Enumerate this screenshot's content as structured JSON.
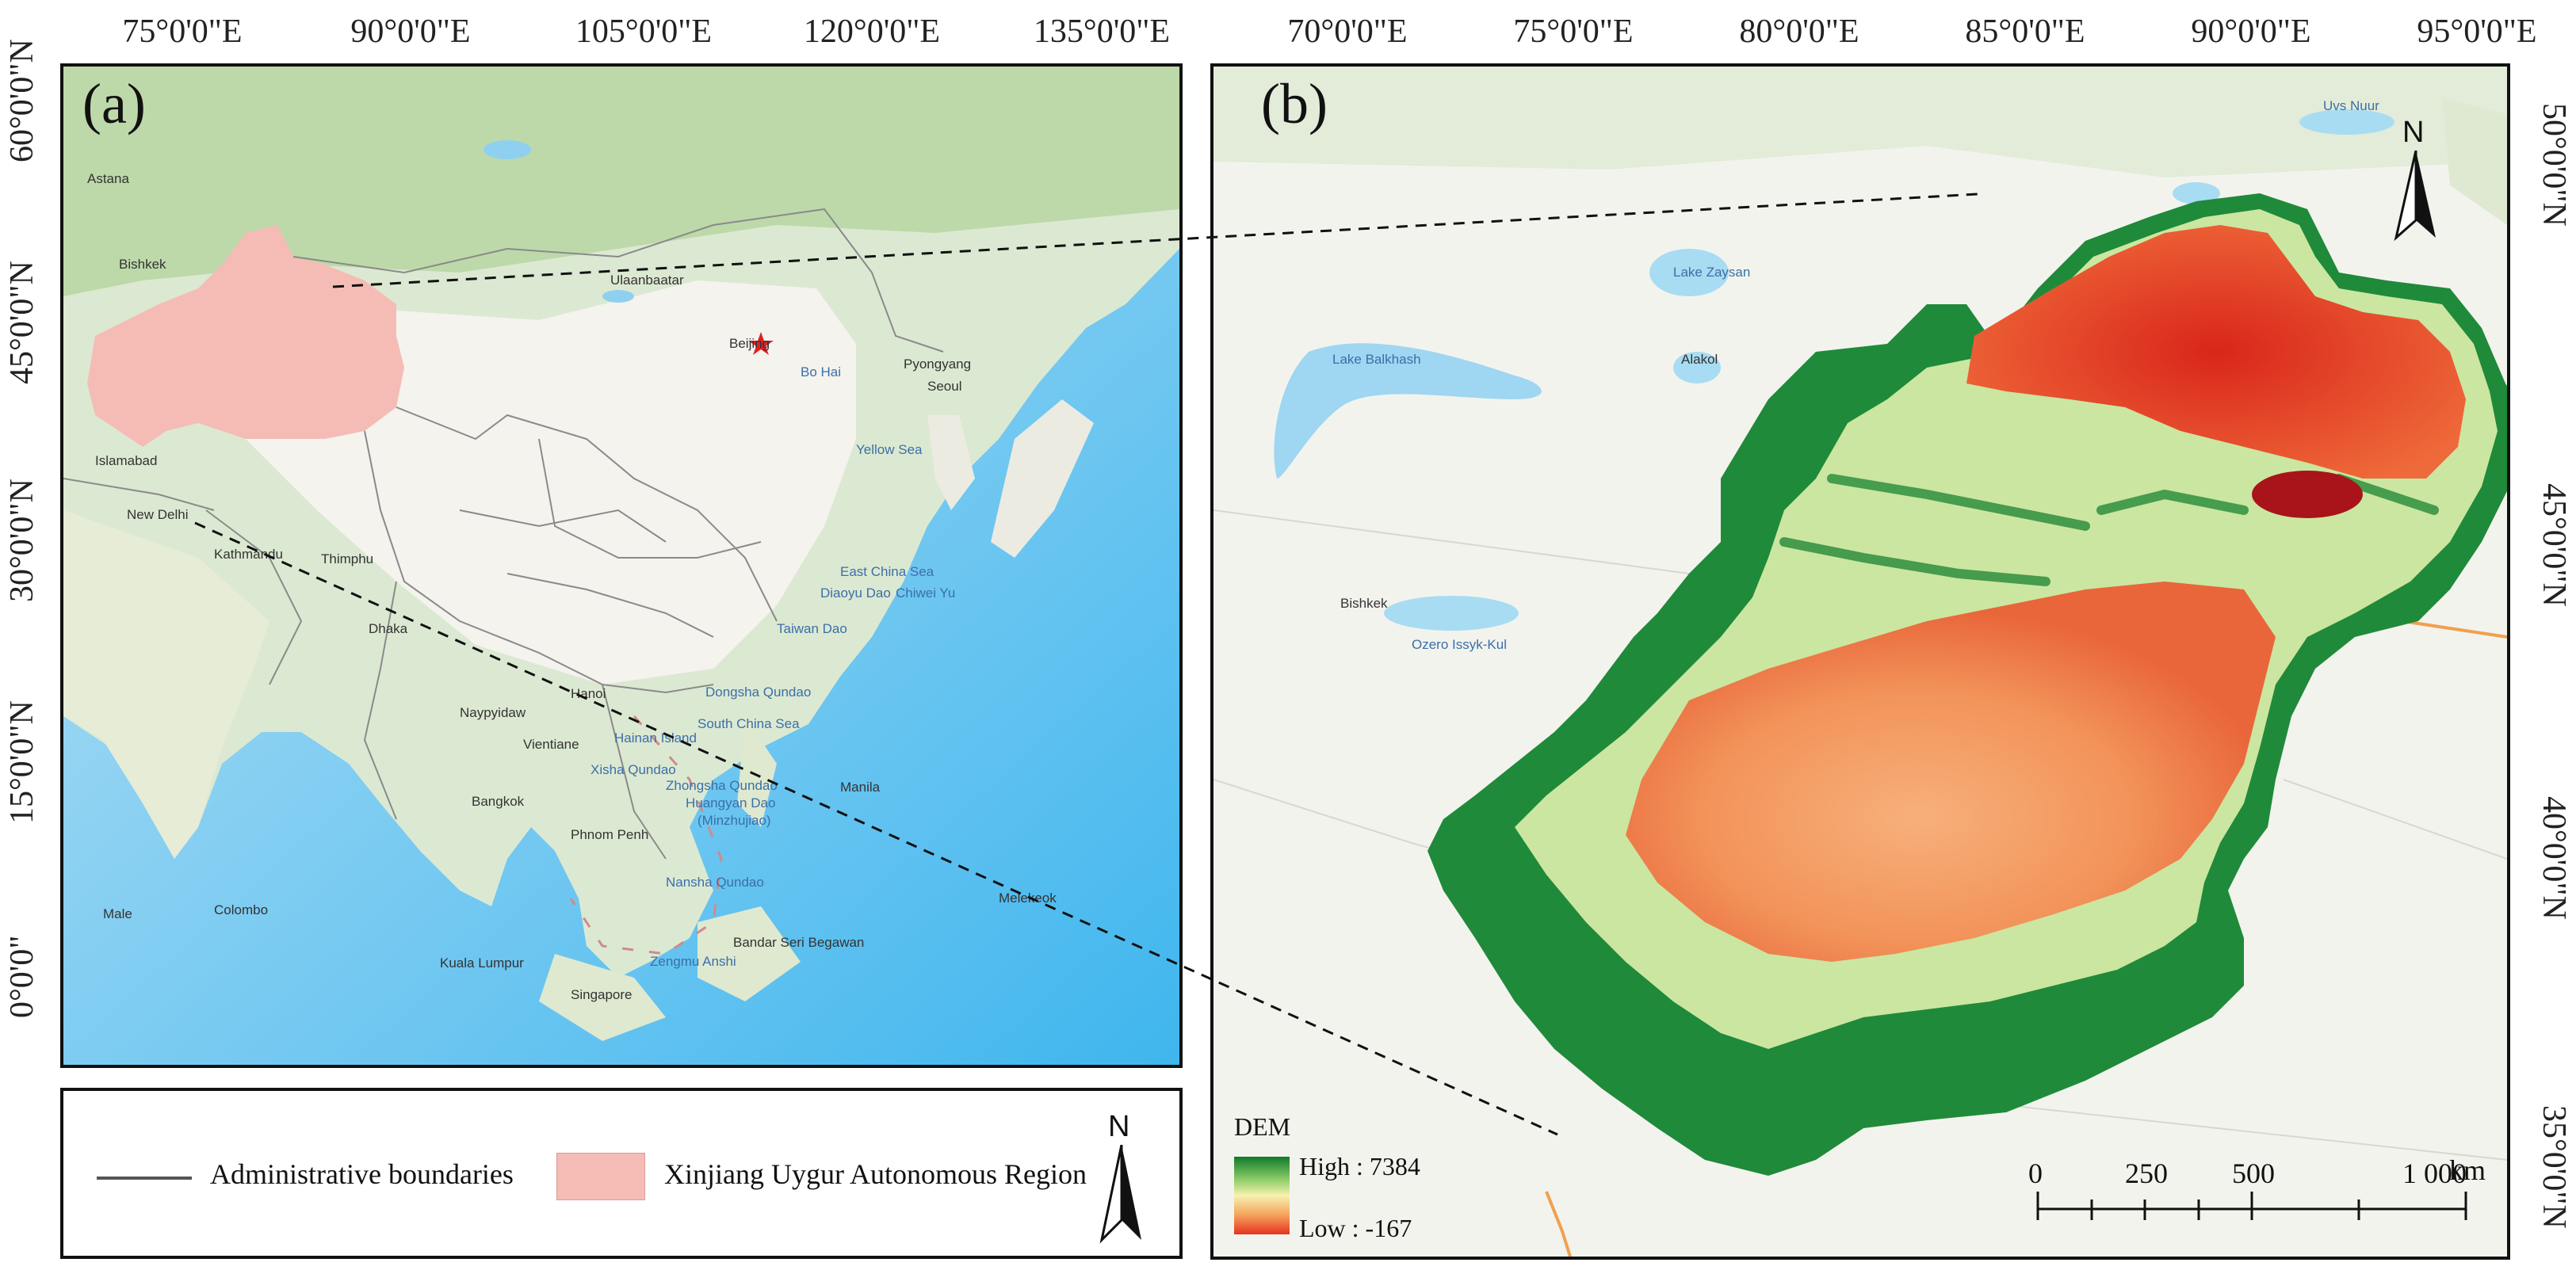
{
  "panel_a": {
    "label": "(a)",
    "top_ticks": [
      "75°0'0\"E",
      "90°0'0\"E",
      "105°0'0\"E",
      "120°0'0\"E",
      "135°0'0\"E"
    ],
    "left_ticks": [
      "60°0'0\"N",
      "45°0'0\"N",
      "30°0'0\"N",
      "15°0'0\"N",
      "0°0'0\""
    ],
    "places": [
      "Astana",
      "Bishkek",
      "Ulaanbaatar",
      "Beijing",
      "Bo Hai",
      "Pyongyang",
      "Seoul",
      "Yellow Sea",
      "Islamabad",
      "New Delhi",
      "Kathmandu",
      "Thimphu",
      "Dhaka",
      "East China Sea",
      "Diaoyu Dao",
      "Chiwei Yu",
      "Taiwan Dao",
      "Dongsha Qundao",
      "Hanoi",
      "Hainan Island",
      "South China Sea",
      "Naypyidaw",
      "Vientiane",
      "Xisha Qundao",
      "Zhongsha Qundao",
      "Huangyan Dao",
      "(Minzhujiao)",
      "Manila",
      "Bangkok",
      "Phnom Penh",
      "Nansha Qundao",
      "Melekeok",
      "Male",
      "Colombo",
      "Bandar Seri Begawan",
      "Zengmu Anshi",
      "Kuala Lumpur",
      "Singapore"
    ]
  },
  "panel_b": {
    "label": "(b)",
    "top_ticks": [
      "70°0'0\"E",
      "75°0'0\"E",
      "80°0'0\"E",
      "85°0'0\"E",
      "90°0'0\"E",
      "95°0'0\"E"
    ],
    "right_ticks": [
      "50°0'0\"N",
      "45°0'0\"N",
      "40°0'0\"N",
      "35°0'0\"N"
    ],
    "places": [
      "Lake Zaysan",
      "Lake Balkhash",
      "Alakol",
      "Bishkek",
      "Ozero Issyk-Kul",
      "Uvs Nuur"
    ],
    "dem": {
      "title": "DEM",
      "high_label": "High : 7384",
      "low_label": "Low : -167",
      "colors": [
        "#0f7a2a",
        "#8fcf6a",
        "#f7f2b0",
        "#f4a35c",
        "#e8321f"
      ]
    },
    "scale_bar": {
      "labels": [
        "0",
        "250",
        "500",
        "1 000"
      ],
      "unit": "km"
    }
  },
  "north_arrow": "N",
  "legend": {
    "admin_boundaries": "Administrative boundaries",
    "xinjiang": "Xinjiang Uygur Autonomous Region",
    "xinjiang_color": "#f5bcb6"
  }
}
